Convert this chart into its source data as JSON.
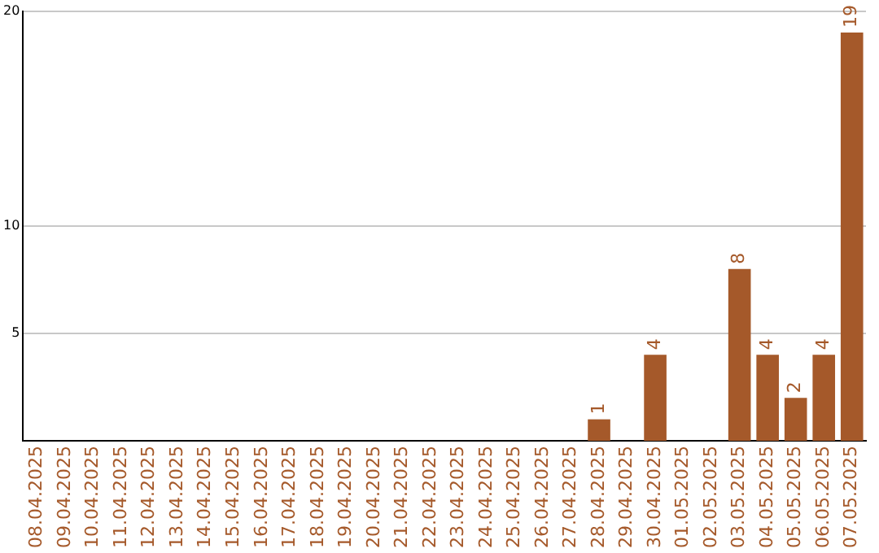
{
  "chart_data": {
    "type": "bar",
    "categories": [
      "08.04.2025",
      "09.04.2025",
      "10.04.2025",
      "11.04.2025",
      "12.04.2025",
      "13.04.2025",
      "14.04.2025",
      "15.04.2025",
      "16.04.2025",
      "17.04.2025",
      "18.04.2025",
      "19.04.2025",
      "20.04.2025",
      "21.04.2025",
      "22.04.2025",
      "23.04.2025",
      "24.04.2025",
      "25.04.2025",
      "26.04.2025",
      "27.04.2025",
      "28.04.2025",
      "29.04.2025",
      "30.04.2025",
      "01.05.2025",
      "02.05.2025",
      "03.05.2025",
      "04.05.2025",
      "05.05.2025",
      "06.05.2025",
      "07.05.2025"
    ],
    "values": [
      0,
      0,
      0,
      0,
      0,
      0,
      0,
      0,
      0,
      0,
      0,
      0,
      0,
      0,
      0,
      0,
      0,
      0,
      0,
      0,
      1,
      0,
      4,
      0,
      0,
      8,
      4,
      2,
      4,
      19
    ],
    "color": "#a5592a",
    "ylim": [
      0,
      20
    ],
    "yticks": [
      5,
      10,
      20
    ],
    "value_labels": [
      null,
      null,
      null,
      null,
      null,
      null,
      null,
      null,
      null,
      null,
      null,
      null,
      null,
      null,
      null,
      null,
      null,
      null,
      null,
      null,
      "1",
      null,
      "4",
      null,
      null,
      "8",
      "4",
      "2",
      "4",
      "19"
    ],
    "grid": "y",
    "legend": false
  }
}
